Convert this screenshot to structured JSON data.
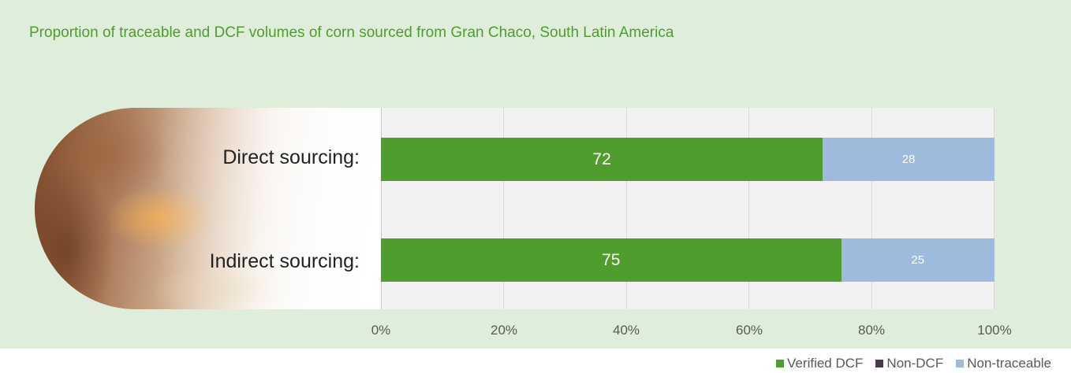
{
  "colors": {
    "verified": "#4f9e2d",
    "non_dcf": "#4a3a4a",
    "non_traceable": "#9ebadd"
  },
  "chart_data": {
    "type": "bar",
    "orientation": "horizontal",
    "stacked": true,
    "title": "Proportion of traceable and DCF volumes of corn sourced from Gran Chaco, South Latin America",
    "categories": [
      "Direct sourcing:",
      "Indirect sourcing:"
    ],
    "series": [
      {
        "name": "Verified DCF",
        "values": [
          72,
          75
        ]
      },
      {
        "name": "Non-DCF",
        "values": [
          0,
          0
        ]
      },
      {
        "name": "Non-traceable",
        "values": [
          28,
          25
        ]
      }
    ],
    "xlim": [
      0,
      100
    ],
    "xticks": [
      "0%",
      "20%",
      "40%",
      "60%",
      "80%",
      "100%"
    ],
    "grid": true,
    "legend": "bottom-right"
  }
}
